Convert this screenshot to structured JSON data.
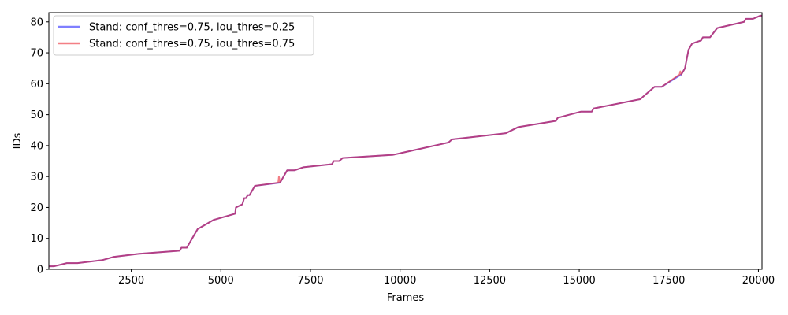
{
  "chart_data": {
    "type": "line",
    "xlabel": "Frames",
    "ylabel": "IDs",
    "xlim": [
      200,
      20100
    ],
    "ylim": [
      0,
      83
    ],
    "xticks": [
      2500,
      5000,
      7500,
      10000,
      12500,
      15000,
      17500,
      20000
    ],
    "yticks": [
      0,
      10,
      20,
      30,
      40,
      50,
      60,
      70,
      80
    ],
    "grid": false,
    "legend_position": "top-left",
    "series": [
      {
        "name": "Stand: conf_thres=0.75, iou_thres=0.25",
        "color": "#0000ff",
        "alpha": 0.5,
        "x": [
          200,
          350,
          700,
          1000,
          1700,
          2000,
          2700,
          3850,
          3900,
          4050,
          4350,
          4800,
          5400,
          5420,
          5600,
          5650,
          5700,
          5750,
          5800,
          5950,
          6650,
          6700,
          6850,
          7050,
          7300,
          8100,
          8150,
          8300,
          8400,
          9800,
          11350,
          11450,
          12950,
          13300,
          14350,
          14400,
          15050,
          15350,
          15400,
          16700,
          17100,
          17300,
          17850,
          17950,
          18050,
          18150,
          18400,
          18450,
          18650,
          18850,
          19600,
          19650,
          19850,
          20050,
          20100
        ],
        "values": [
          1,
          1,
          2,
          2,
          3,
          4,
          5,
          6,
          7,
          7,
          13,
          16,
          18,
          20,
          21,
          23,
          23,
          24,
          24,
          27,
          28,
          29,
          32,
          32,
          33,
          34,
          35,
          35,
          36,
          37,
          41,
          42,
          44,
          46,
          48,
          49,
          51,
          51,
          52,
          55,
          59,
          59,
          63,
          65,
          71,
          73,
          74,
          75,
          75,
          78,
          80,
          81,
          81,
          82,
          82
        ]
      },
      {
        "name": "Stand: conf_thres=0.75, iou_thres=0.75",
        "color": "#e8000b",
        "alpha": 0.5,
        "x": [
          200,
          350,
          700,
          1000,
          1700,
          2000,
          2700,
          3850,
          3900,
          4050,
          4350,
          4800,
          5400,
          5420,
          5600,
          5650,
          5700,
          5750,
          5800,
          5950,
          6600,
          6620,
          6650,
          6700,
          6850,
          7050,
          7300,
          8100,
          8150,
          8300,
          8400,
          9800,
          11350,
          11450,
          12950,
          13300,
          14350,
          14400,
          15050,
          15350,
          15400,
          16700,
          17100,
          17300,
          17800,
          17820,
          17850,
          17950,
          18050,
          18150,
          18400,
          18450,
          18650,
          18850,
          19600,
          19650,
          19850,
          20050,
          20100
        ],
        "values": [
          1,
          1,
          2,
          2,
          3,
          4,
          5,
          6,
          7,
          7,
          13,
          16,
          18,
          20,
          21,
          23,
          23,
          24,
          24,
          27,
          28,
          30,
          28,
          29,
          32,
          32,
          33,
          34,
          35,
          35,
          36,
          37,
          41,
          42,
          44,
          46,
          48,
          49,
          51,
          51,
          52,
          55,
          59,
          59,
          63,
          64,
          63,
          65,
          71,
          73,
          74,
          75,
          75,
          78,
          80,
          81,
          81,
          82,
          82
        ]
      }
    ]
  }
}
